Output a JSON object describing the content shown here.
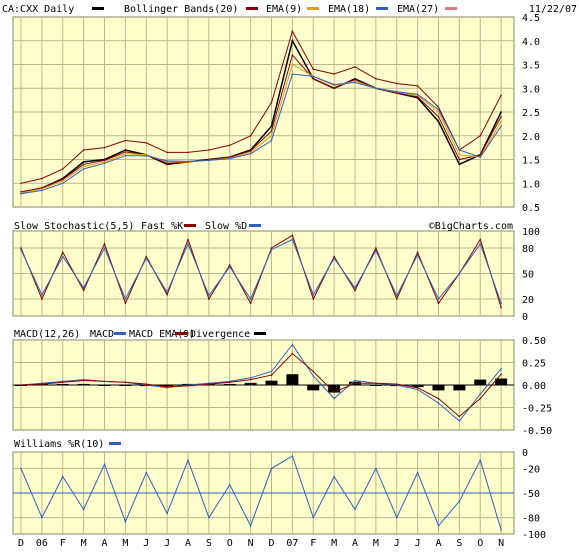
{
  "header": {
    "ticker_label": "CA:CXX Daily",
    "legend": [
      {
        "label": "Bollinger Bands(20)",
        "color": "#8B0000"
      },
      {
        "label": "EMA(9)",
        "color": "#8B0000"
      },
      {
        "label": "EMA(18)",
        "color": "#D9A020"
      },
      {
        "label": "EMA(27)",
        "color": "#3060C0"
      }
    ],
    "extra_swatch_color": "#D08080",
    "date": "11/22/07"
  },
  "watermark": "©BigCharts.com",
  "panels": {
    "stoch": {
      "title": "Slow Stochastic(5,5)",
      "legend": [
        {
          "label": "Fast %K",
          "color": "#8B0000"
        },
        {
          "label": "Slow %D",
          "color": "#3060C0"
        }
      ]
    },
    "macd": {
      "title": "MACD(12,26)",
      "legend": [
        {
          "label": "MACD",
          "color": "#3060C0"
        },
        {
          "label": "MACD EMA(9)",
          "color": "#8B0000"
        },
        {
          "label": "Divergence",
          "color": "#000000"
        }
      ]
    },
    "williams": {
      "title": "Williams %R(10)",
      "legend_color": "#3060C0"
    }
  },
  "chart_data": [
    {
      "type": "line",
      "panel": "price",
      "title": "CA:CXX Daily",
      "ylim": [
        0.5,
        4.5
      ],
      "yticks": [
        "0.5",
        "1.0",
        "1.5",
        "2.0",
        "2.5",
        "3.0",
        "3.5",
        "4.0",
        "4.5"
      ],
      "x": [
        "D",
        "06",
        "F",
        "M",
        "A",
        "M",
        "J",
        "J",
        "A",
        "S",
        "O",
        "N",
        "D",
        "07",
        "F",
        "M",
        "A",
        "M",
        "J",
        "J",
        "A",
        "S",
        "O",
        "N"
      ],
      "series": [
        {
          "name": "CA:CXX Daily",
          "values": [
            0.8,
            0.9,
            1.1,
            1.45,
            1.5,
            1.7,
            1.6,
            1.4,
            1.45,
            1.5,
            1.55,
            1.7,
            2.2,
            4.0,
            3.2,
            3.0,
            3.2,
            3.0,
            2.9,
            2.8,
            2.3,
            1.4,
            1.6,
            2.5
          ]
        },
        {
          "name": "Bollinger Bands(20)",
          "values": [
            1.0,
            1.1,
            1.3,
            1.7,
            1.75,
            1.9,
            1.85,
            1.65,
            1.65,
            1.7,
            1.8,
            2.0,
            2.7,
            4.2,
            3.4,
            3.3,
            3.45,
            3.2,
            3.1,
            3.05,
            2.6,
            1.7,
            2.0,
            2.85
          ]
        },
        {
          "name": "EMA(9)",
          "values": [
            0.82,
            0.9,
            1.08,
            1.4,
            1.48,
            1.66,
            1.6,
            1.42,
            1.44,
            1.5,
            1.55,
            1.68,
            2.1,
            3.7,
            3.2,
            3.0,
            3.18,
            3.0,
            2.9,
            2.82,
            2.4,
            1.5,
            1.6,
            2.4
          ]
        },
        {
          "name": "EMA(18)",
          "values": [
            0.8,
            0.88,
            1.05,
            1.35,
            1.45,
            1.62,
            1.6,
            1.45,
            1.45,
            1.48,
            1.53,
            1.65,
            2.0,
            3.5,
            3.25,
            3.05,
            3.15,
            3.0,
            2.92,
            2.85,
            2.5,
            1.6,
            1.55,
            2.3
          ]
        },
        {
          "name": "EMA(27)",
          "values": [
            0.78,
            0.85,
            1.0,
            1.3,
            1.42,
            1.58,
            1.58,
            1.47,
            1.46,
            1.48,
            1.52,
            1.62,
            1.9,
            3.3,
            3.25,
            3.08,
            3.12,
            3.0,
            2.93,
            2.87,
            2.55,
            1.7,
            1.55,
            2.2
          ]
        }
      ]
    },
    {
      "type": "line",
      "panel": "stoch",
      "title": "Slow Stochastic(5,5)",
      "ylim": [
        0,
        100
      ],
      "yticks": [
        "0",
        "20",
        "50",
        "80",
        "100"
      ],
      "series": [
        {
          "name": "Fast %K",
          "values": [
            80,
            20,
            75,
            30,
            85,
            15,
            70,
            25,
            90,
            20,
            60,
            15,
            80,
            95,
            20,
            70,
            30,
            80,
            20,
            75,
            15,
            50,
            90,
            10
          ]
        },
        {
          "name": "Slow %D",
          "values": [
            78,
            25,
            70,
            33,
            80,
            20,
            68,
            28,
            85,
            24,
            58,
            20,
            78,
            90,
            25,
            68,
            33,
            77,
            24,
            72,
            20,
            50,
            85,
            15
          ]
        }
      ]
    },
    {
      "type": "line",
      "panel": "macd",
      "title": "MACD(12,26)",
      "ylim": [
        -0.5,
        0.5
      ],
      "yticks": [
        "0.50",
        "0.25",
        "0.00",
        "-0.25",
        "-0.50"
      ],
      "series": [
        {
          "name": "MACD",
          "values": [
            0.0,
            0.02,
            0.04,
            0.06,
            0.04,
            0.03,
            0.0,
            -0.03,
            0.0,
            0.02,
            0.04,
            0.08,
            0.15,
            0.45,
            0.1,
            -0.15,
            0.05,
            0.02,
            0.0,
            -0.05,
            -0.2,
            -0.4,
            -0.1,
            0.18
          ]
        },
        {
          "name": "MACD EMA(9)",
          "values": [
            0.0,
            0.01,
            0.03,
            0.05,
            0.04,
            0.03,
            0.01,
            -0.02,
            -0.01,
            0.01,
            0.03,
            0.06,
            0.11,
            0.35,
            0.15,
            -0.08,
            0.02,
            0.02,
            0.01,
            -0.03,
            -0.15,
            -0.35,
            -0.15,
            0.12
          ]
        }
      ]
    },
    {
      "type": "line",
      "panel": "williams",
      "title": "Williams %R(10)",
      "ylim": [
        -100,
        0
      ],
      "yticks": [
        "0",
        "-20",
        "-50",
        "-80",
        "-100"
      ],
      "series": [
        {
          "name": "Williams %R(10)",
          "values": [
            -20,
            -80,
            -30,
            -70,
            -15,
            -85,
            -25,
            -75,
            -10,
            -80,
            -40,
            -90,
            -20,
            -5,
            -80,
            -30,
            -70,
            -20,
            -80,
            -25,
            -90,
            -60,
            -10,
            -95
          ]
        }
      ]
    }
  ]
}
